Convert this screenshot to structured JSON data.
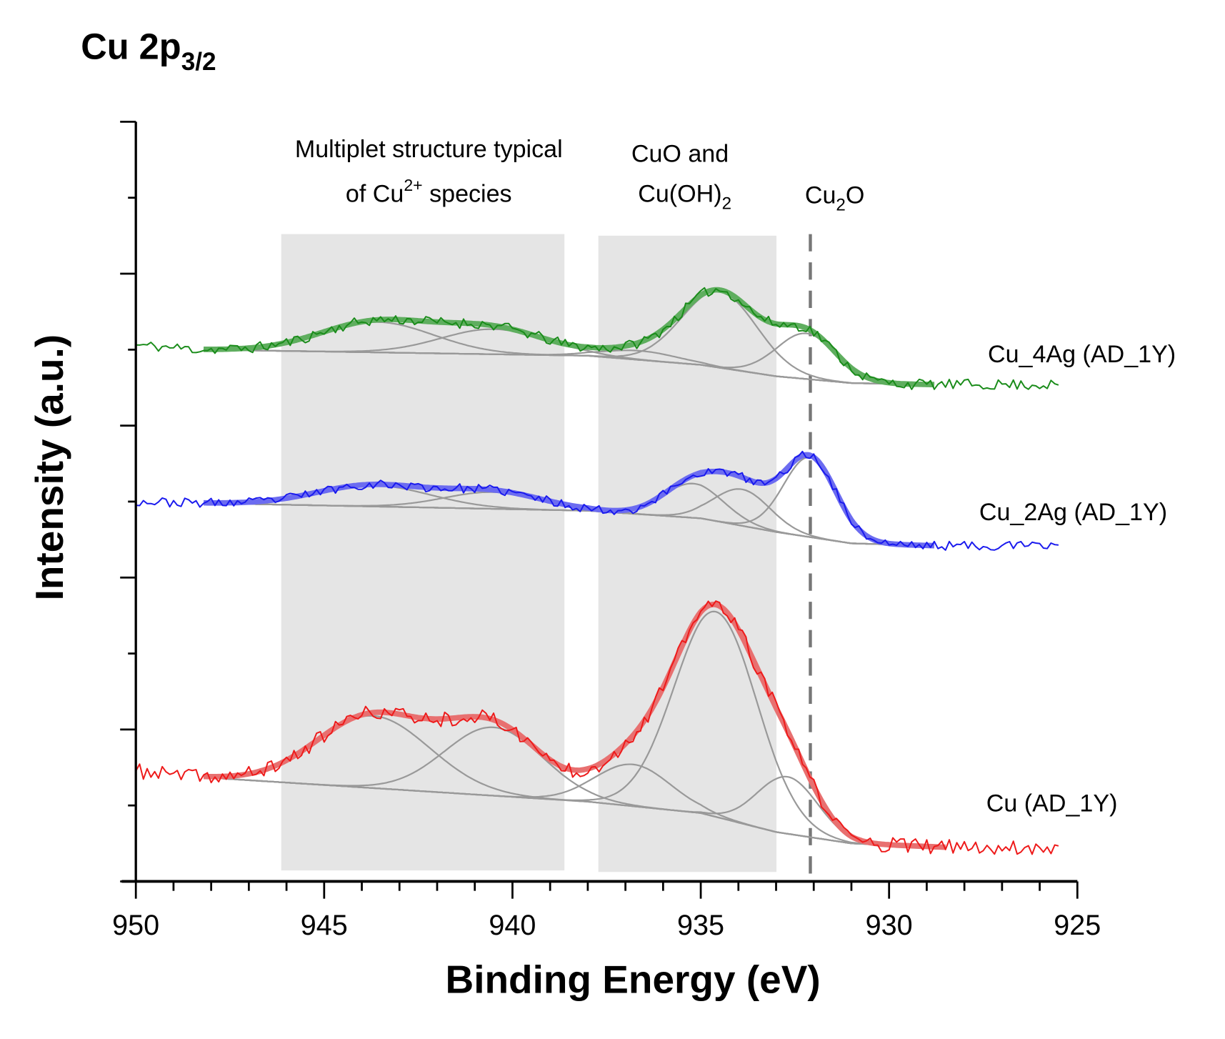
{
  "chart_data": {
    "type": "line",
    "title": "Cu 2p",
    "title_sub": "3/2",
    "xlabel": "Binding Energy (eV)",
    "ylabel": "Intensity (a.u.)",
    "xlim": [
      950,
      925
    ],
    "ylim": [
      0,
      10
    ],
    "xticks": [
      950,
      945,
      940,
      935,
      930,
      925
    ],
    "x_minor_step": 1,
    "grid": false,
    "annotations": {
      "multiplet_line1": "Multiplet structure typical",
      "multiplet_line2_a": "of Cu",
      "multiplet_line2_sup": "2+",
      "multiplet_line2_b": " species",
      "cuo_line1": "CuO and",
      "cuo_line2_a": "Cu(OH)",
      "cuo_line2_sub": "2",
      "cu2o_a": "Cu",
      "cu2o_sub": "2",
      "cu2o_b": "O"
    },
    "shaded_regions": [
      [
        946.14,
        938.62
      ],
      [
        937.72,
        932.99
      ]
    ],
    "reference_line": 932.09,
    "series": [
      {
        "name": "Cu_4Ag (AD_1Y)",
        "color": "#1a8c1a",
        "fit_color": "#5fae5f",
        "fit_range": [
          948.2,
          928.8
        ],
        "noise": 0.07,
        "seed": 11,
        "background": [
          [
            950,
            7.06
          ],
          [
            948.2,
            7.0
          ],
          [
            938,
            6.92
          ],
          [
            935,
            6.8
          ],
          [
            933,
            6.65
          ],
          [
            931,
            6.56
          ],
          [
            928.8,
            6.54
          ],
          [
            925.4,
            6.54
          ]
        ],
        "peaks": [
          {
            "center": 943.6,
            "height": 0.4,
            "sigma": 1.5
          },
          {
            "center": 940.5,
            "height": 0.33,
            "sigma": 1.4
          },
          {
            "center": 936.6,
            "height": 0.12,
            "sigma": 1.0
          },
          {
            "center": 934.5,
            "height": 1.0,
            "sigma": 1.0
          },
          {
            "center": 932.2,
            "height": 0.6,
            "sigma": 0.8
          }
        ]
      },
      {
        "name": "Cu_2Ag (AD_1Y)",
        "color": "#1a1aee",
        "fit_color": "#6c6cf0",
        "fit_range": [
          948.2,
          928.8
        ],
        "noise": 0.06,
        "seed": 23,
        "background": [
          [
            950,
            5.0
          ],
          [
            948.2,
            4.98
          ],
          [
            938,
            4.88
          ],
          [
            935,
            4.78
          ],
          [
            933,
            4.6
          ],
          [
            931,
            4.45
          ],
          [
            928.8,
            4.42
          ],
          [
            925.4,
            4.42
          ]
        ],
        "peaks": [
          {
            "center": 943.7,
            "height": 0.28,
            "sigma": 1.5
          },
          {
            "center": 940.5,
            "height": 0.22,
            "sigma": 1.3
          },
          {
            "center": 935.2,
            "height": 0.45,
            "sigma": 0.8
          },
          {
            "center": 933.9,
            "height": 0.48,
            "sigma": 0.75
          },
          {
            "center": 932.1,
            "height": 1.05,
            "sigma": 0.7
          }
        ]
      },
      {
        "name": "Cu (AD_1Y)",
        "color": "#ee1a1a",
        "fit_color": "#e87070",
        "fit_range": [
          948.2,
          928.5
        ],
        "noise": 0.1,
        "seed": 37,
        "background": [
          [
            950,
            1.45
          ],
          [
            948.2,
            1.37
          ],
          [
            938,
            1.05
          ],
          [
            935,
            0.9
          ],
          [
            933,
            0.65
          ],
          [
            931,
            0.5
          ],
          [
            928.5,
            0.45
          ],
          [
            925.4,
            0.45
          ]
        ],
        "peaks": [
          {
            "center": 943.7,
            "height": 0.95,
            "sigma": 1.5
          },
          {
            "center": 940.5,
            "height": 0.9,
            "sigma": 1.3
          },
          {
            "center": 936.8,
            "height": 0.55,
            "sigma": 1.0
          },
          {
            "center": 934.6,
            "height": 2.7,
            "sigma": 1.1
          },
          {
            "center": 932.7,
            "height": 0.75,
            "sigma": 0.8
          }
        ]
      }
    ]
  }
}
